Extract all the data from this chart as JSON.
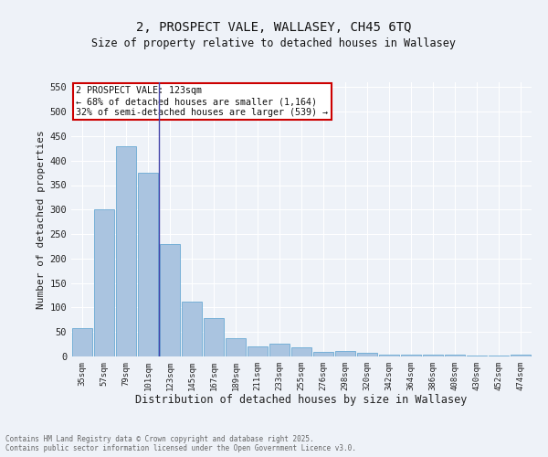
{
  "title1": "2, PROSPECT VALE, WALLASEY, CH45 6TQ",
  "title2": "Size of property relative to detached houses in Wallasey",
  "xlabel": "Distribution of detached houses by size in Wallasey",
  "ylabel": "Number of detached properties",
  "categories": [
    "35sqm",
    "57sqm",
    "79sqm",
    "101sqm",
    "123sqm",
    "145sqm",
    "167sqm",
    "189sqm",
    "211sqm",
    "233sqm",
    "255sqm",
    "276sqm",
    "298sqm",
    "320sqm",
    "342sqm",
    "364sqm",
    "386sqm",
    "408sqm",
    "430sqm",
    "452sqm",
    "474sqm"
  ],
  "values": [
    58,
    300,
    430,
    375,
    230,
    112,
    78,
    38,
    20,
    26,
    18,
    9,
    11,
    8,
    4,
    4,
    3,
    3,
    2,
    2,
    3
  ],
  "bar_color": "#aac4e0",
  "bar_edge_color": "#6aaad4",
  "highlight_bar_index": 4,
  "highlight_line_color": "#4444aa",
  "annotation_text": "2 PROSPECT VALE: 123sqm\n← 68% of detached houses are smaller (1,164)\n32% of semi-detached houses are larger (539) →",
  "annotation_box_facecolor": "#ffffff",
  "annotation_box_edgecolor": "#cc0000",
  "background_color": "#eef2f8",
  "grid_color": "#ffffff",
  "ylim": [
    0,
    560
  ],
  "yticks": [
    0,
    50,
    100,
    150,
    200,
    250,
    300,
    350,
    400,
    450,
    500,
    550
  ],
  "footer1": "Contains HM Land Registry data © Crown copyright and database right 2025.",
  "footer2": "Contains public sector information licensed under the Open Government Licence v3.0."
}
